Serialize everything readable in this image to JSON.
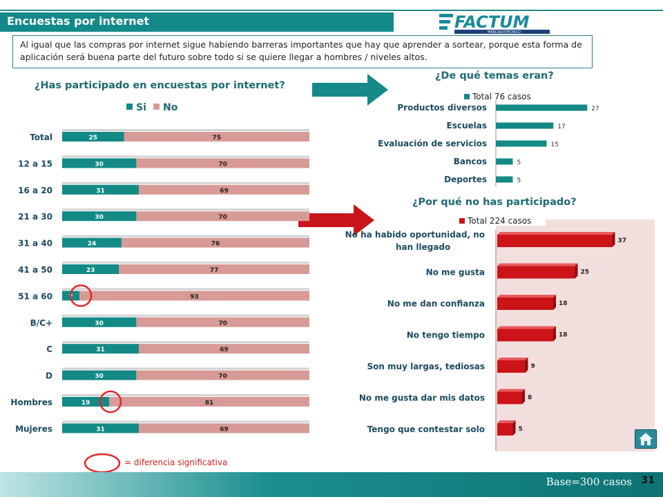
{
  "header": {
    "title": "Encuestas por internet",
    "logo_text": "FACTUM",
    "logo_sub": "MERCADOTÉCNICO"
  },
  "note": "Al igual que las compras por internet sigue habiendo barreras importantes que hay que aprender a sortear, porque esta forma de aplicación será buena parte del futuro sobre todo si se quiere llegar a hombres / niveles altos.",
  "footer": {
    "base": "Base=300 casos",
    "page_number": "31"
  },
  "significance_legend": "= diferencia significativa",
  "colors": {
    "teal": "#138a86",
    "pink": "#d79a96",
    "red": "#cc1418",
    "highlight": "#e0262b"
  },
  "chart_data": [
    {
      "type": "bar",
      "orientation": "horizontal",
      "stacked": true,
      "title": "¿Has participado en encuestas por internet?",
      "categories": [
        "Total",
        "12 a 15",
        "16 a 20",
        "21 a 30",
        "31 a 40",
        "41 a 50",
        "51 a 60",
        "B/C+",
        "C",
        "D",
        "Hombres",
        "Mujeres"
      ],
      "series": [
        {
          "name": "Si",
          "values": [
            25,
            30,
            31,
            30,
            24,
            23,
            7,
            30,
            31,
            30,
            19,
            31
          ]
        },
        {
          "name": "No",
          "values": [
            75,
            70,
            69,
            70,
            76,
            77,
            93,
            70,
            69,
            70,
            81,
            69
          ]
        }
      ],
      "xlim": [
        0,
        100
      ],
      "legend": "top",
      "significant": [
        "51 a 60",
        "Hombres"
      ]
    },
    {
      "type": "bar",
      "orientation": "horizontal",
      "title": "¿De qué temas eran?",
      "legend_label": "Total 76 casos",
      "categories": [
        "Productos diversos",
        "Escuelas",
        "Evaluación de servicios",
        "Bancos",
        "Deportes"
      ],
      "values": [
        27,
        17,
        15,
        5,
        5
      ],
      "xlim": [
        0,
        30
      ]
    },
    {
      "type": "bar",
      "orientation": "horizontal",
      "title": "¿Por qué no has participado?",
      "legend_label": "Total 224 casos",
      "categories": [
        "No ha habido oportunidad, no han llegado",
        "No me gusta",
        "No me dan confianza",
        "No tengo tiempo",
        "Son muy largas, tediosas",
        "No me gusta dar mis datos",
        "Tengo que contestar solo"
      ],
      "values": [
        37,
        25,
        18,
        18,
        9,
        8,
        5
      ],
      "xlim": [
        0,
        40
      ]
    }
  ]
}
